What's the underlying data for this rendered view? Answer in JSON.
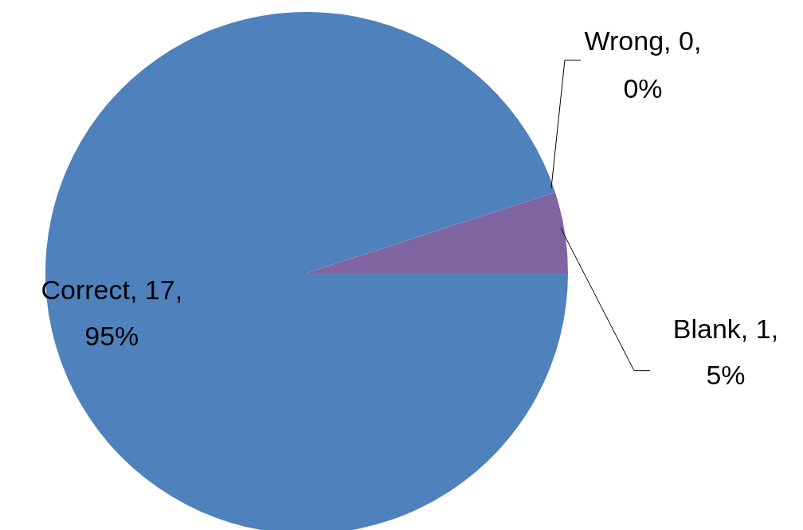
{
  "chart_data": {
    "type": "pie",
    "categories": [
      "Correct, 17, 95%",
      "Wrong, 0, 0%",
      "Blank, 1, 5%"
    ],
    "values": [
      95,
      0,
      5
    ],
    "colors": [
      "#4f81bd",
      "#c0504d",
      "#8064a2"
    ]
  }
}
